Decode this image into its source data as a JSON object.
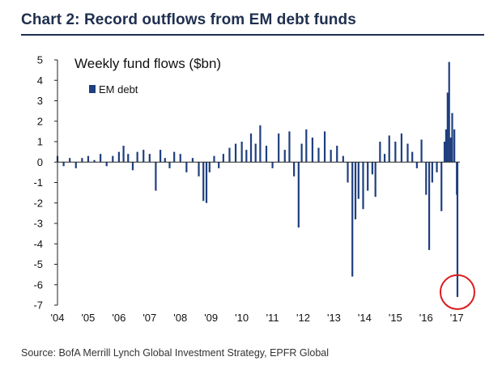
{
  "header": {
    "title": "Chart 2: Record outflows from EM debt funds",
    "source": "Source: BofA Merrill Lynch Global Investment Strategy, EPFR Global"
  },
  "colors": {
    "bar": "#1f3f7f",
    "title": "#1f2f4f",
    "highlight_circle": "#dd1c1c"
  },
  "chart_data": {
    "type": "bar",
    "title": "Weekly fund flows ($bn)",
    "legend": {
      "entries": [
        "EM debt"
      ],
      "placement": "top-left"
    },
    "xlabel": "",
    "ylabel": "",
    "ylim": [
      -7,
      5
    ],
    "yticks": [
      5,
      4,
      3,
      2,
      1,
      0,
      -1,
      -2,
      -3,
      -4,
      -5,
      -6,
      -7
    ],
    "xticks": [
      "'04",
      "'05",
      "'06",
      "'07",
      "'08",
      "'09",
      "'10",
      "'11",
      "'12",
      "'13",
      "'14",
      "'15",
      "'16",
      "'17"
    ],
    "xlim": [
      2004,
      2017.1
    ],
    "grid": false,
    "series": [
      {
        "name": "EM debt",
        "x": [
          2004.0,
          2004.2,
          2004.4,
          2004.6,
          2004.8,
          2005.0,
          2005.2,
          2005.4,
          2005.6,
          2005.8,
          2006.0,
          2006.15,
          2006.3,
          2006.45,
          2006.6,
          2006.8,
          2007.0,
          2007.2,
          2007.35,
          2007.5,
          2007.65,
          2007.8,
          2008.0,
          2008.2,
          2008.4,
          2008.6,
          2008.75,
          2008.85,
          2008.95,
          2009.1,
          2009.25,
          2009.4,
          2009.6,
          2009.8,
          2010.0,
          2010.15,
          2010.3,
          2010.45,
          2010.6,
          2010.8,
          2011.0,
          2011.2,
          2011.4,
          2011.55,
          2011.7,
          2011.85,
          2011.95,
          2012.1,
          2012.3,
          2012.5,
          2012.7,
          2012.9,
          2013.1,
          2013.3,
          2013.45,
          2013.6,
          2013.7,
          2013.8,
          2013.95,
          2014.1,
          2014.25,
          2014.35,
          2014.5,
          2014.65,
          2014.8,
          2015.0,
          2015.2,
          2015.4,
          2015.55,
          2015.7,
          2015.85,
          2016.0,
          2016.1,
          2016.2,
          2016.35,
          2016.5,
          2016.6,
          2016.65,
          2016.7,
          2016.75,
          2016.8,
          2016.85,
          2016.92,
          2017.0,
          2017.02
        ],
        "values": [
          0.3,
          -0.2,
          0.2,
          -0.3,
          0.2,
          0.3,
          0.1,
          0.4,
          -0.2,
          0.3,
          0.5,
          0.8,
          0.4,
          -0.4,
          0.5,
          0.6,
          0.4,
          -1.4,
          0.6,
          0.2,
          -0.3,
          0.5,
          0.4,
          -0.5,
          0.2,
          -0.7,
          -1.9,
          -2.0,
          -0.5,
          0.3,
          -0.3,
          0.4,
          0.7,
          0.9,
          1.0,
          0.6,
          1.4,
          0.9,
          1.8,
          0.8,
          -0.3,
          1.4,
          0.6,
          1.5,
          -0.7,
          -3.2,
          0.9,
          1.6,
          1.2,
          0.7,
          1.5,
          0.6,
          0.8,
          0.3,
          -1.0,
          -5.6,
          -2.8,
          -1.8,
          -2.3,
          -1.4,
          -0.6,
          -1.7,
          1.0,
          0.4,
          1.3,
          1.0,
          1.4,
          0.9,
          0.5,
          -0.3,
          1.1,
          -1.6,
          -4.3,
          -1.0,
          -0.5,
          -2.4,
          1.0,
          1.6,
          3.4,
          4.9,
          1.2,
          2.4,
          1.6,
          -1.6,
          -6.6
        ]
      }
    ],
    "annotation": "circle-highlight-latest-outflow"
  }
}
